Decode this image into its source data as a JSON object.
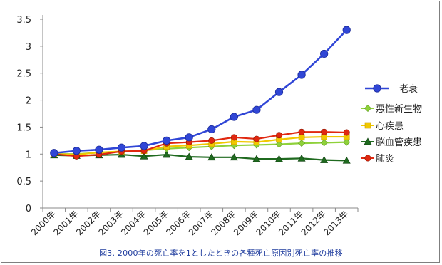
{
  "chart_data": {
    "type": "line",
    "title": "",
    "xlabel": "",
    "ylabel": "",
    "ylim": [
      0,
      3.5
    ],
    "yticks": [
      "0",
      "0.5",
      "1",
      "1.5",
      "2",
      "2.5",
      "3",
      "3.5"
    ],
    "categories": [
      "2000年",
      "2001年",
      "2002年",
      "2003年",
      "2004年",
      "2005年",
      "2006年",
      "2007年",
      "2008年",
      "2009年",
      "2010年",
      "2011年",
      "2012年",
      "2013年"
    ],
    "grid": false,
    "legend_position": "right",
    "series": [
      {
        "name": "老衰",
        "color": "#3046d6",
        "marker": "circle-large",
        "values": [
          1.02,
          1.06,
          1.08,
          1.12,
          1.15,
          1.25,
          1.31,
          1.46,
          1.69,
          1.82,
          2.15,
          2.47,
          2.86,
          3.3
        ]
      },
      {
        "name": "悪性新生物",
        "color": "#8fd13a",
        "marker": "diamond",
        "values": [
          1.0,
          1.0,
          1.03,
          1.04,
          1.07,
          1.1,
          1.12,
          1.14,
          1.16,
          1.17,
          1.18,
          1.2,
          1.21,
          1.22
        ]
      },
      {
        "name": "心疾患",
        "color": "#f0c800",
        "marker": "square",
        "values": [
          1.0,
          0.99,
          1.03,
          1.05,
          1.06,
          1.14,
          1.16,
          1.19,
          1.23,
          1.22,
          1.27,
          1.31,
          1.32,
          1.32
        ]
      },
      {
        "name": "脳血管疾患",
        "color": "#1f6a1f",
        "marker": "triangle",
        "values": [
          0.98,
          0.97,
          0.98,
          0.99,
          0.96,
          0.99,
          0.95,
          0.94,
          0.94,
          0.91,
          0.91,
          0.92,
          0.89,
          0.88
        ]
      },
      {
        "name": "肺炎",
        "color": "#e02810",
        "marker": "circle",
        "values": [
          1.0,
          0.96,
          0.99,
          1.05,
          1.06,
          1.2,
          1.22,
          1.25,
          1.31,
          1.28,
          1.35,
          1.41,
          1.41,
          1.4
        ]
      }
    ]
  },
  "caption": "図3. 2000年の死亡率を1としたときの各種死亡原因別死亡率の推移"
}
